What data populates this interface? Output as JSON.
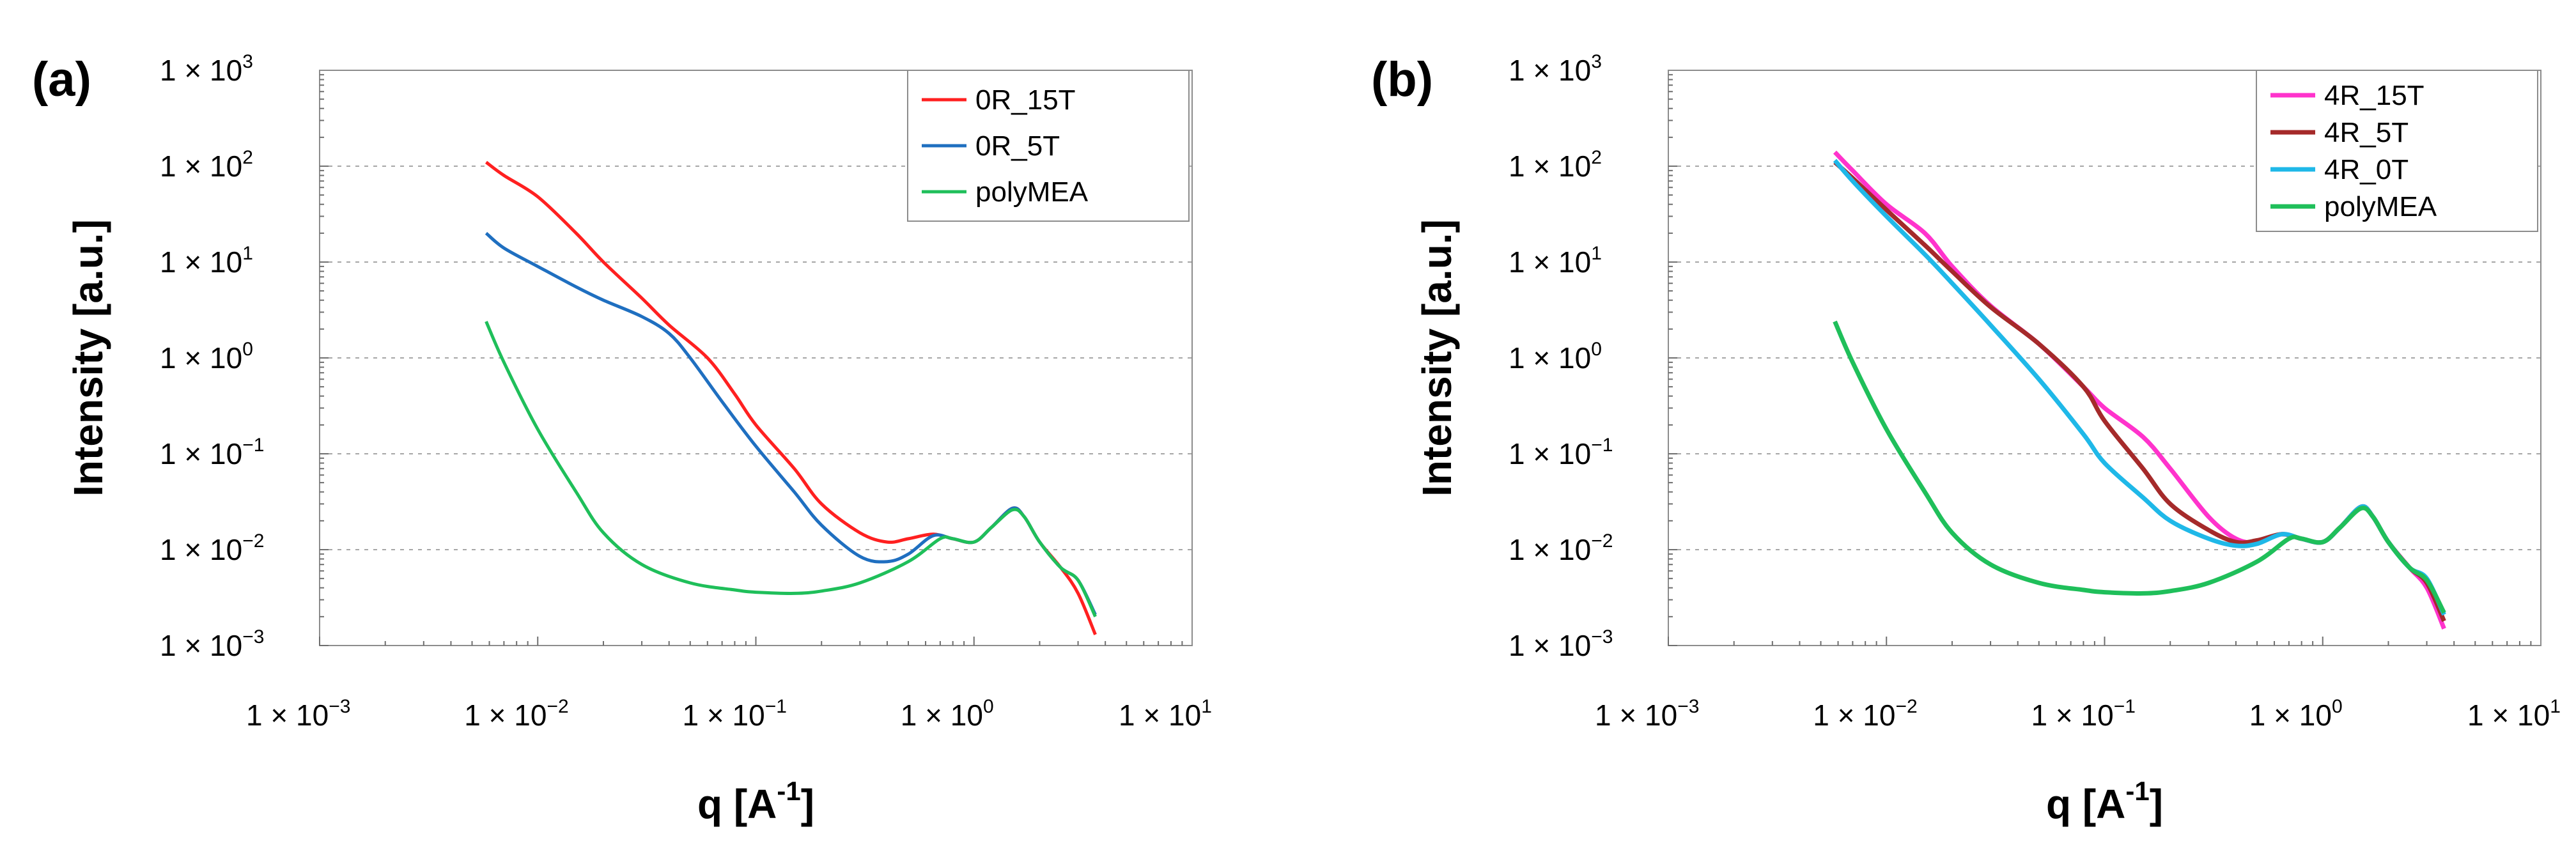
{
  "chart_data": [
    {
      "type": "line",
      "panel_label": "(a)",
      "xlabel": "q   [A",
      "xlabel_sup": "-1",
      "xlabel_end": "]",
      "ylabel": "Intensity   [a.u.]",
      "xscale": "log",
      "yscale": "log",
      "xlim": [
        0.001,
        10
      ],
      "ylim": [
        0.001,
        1000
      ],
      "x_ticks": [
        {
          "value": 0.001,
          "base": "1 × 10",
          "exp": "−3"
        },
        {
          "value": 0.01,
          "base": "1 × 10",
          "exp": "−2"
        },
        {
          "value": 0.1,
          "base": "1 × 10",
          "exp": "−1"
        },
        {
          "value": 1,
          "base": "1 × 10",
          "exp": "0"
        },
        {
          "value": 10,
          "base": "1 × 10",
          "exp": "1"
        }
      ],
      "y_ticks": [
        {
          "value": 0.001,
          "base": "1 × 10",
          "exp": "−3"
        },
        {
          "value": 0.01,
          "base": "1 × 10",
          "exp": "−2"
        },
        {
          "value": 0.1,
          "base": "1 × 10",
          "exp": "−1"
        },
        {
          "value": 1,
          "base": "1 × 10",
          "exp": "0"
        },
        {
          "value": 10,
          "base": "1 × 10",
          "exp": "1"
        },
        {
          "value": 100,
          "base": "1 × 10",
          "exp": "2"
        },
        {
          "value": 1000,
          "base": "1 × 10",
          "exp": "3"
        }
      ],
      "grid": true,
      "legend_position": "top-right",
      "series": [
        {
          "name": "0R_15T",
          "color": "#ff2020",
          "width": 5,
          "points": [
            [
              0.0058,
              110
            ],
            [
              0.007,
              80
            ],
            [
              0.01,
              48
            ],
            [
              0.015,
              20
            ],
            [
              0.02,
              10
            ],
            [
              0.03,
              4.2
            ],
            [
              0.04,
              2.2
            ],
            [
              0.06,
              1.0
            ],
            [
              0.08,
              0.42
            ],
            [
              0.1,
              0.2
            ],
            [
              0.15,
              0.07
            ],
            [
              0.2,
              0.03
            ],
            [
              0.3,
              0.015
            ],
            [
              0.4,
              0.012
            ],
            [
              0.5,
              0.013
            ],
            [
              0.65,
              0.0145
            ],
            [
              0.8,
              0.013
            ],
            [
              1.0,
              0.012
            ],
            [
              1.2,
              0.017
            ],
            [
              1.5,
              0.027
            ],
            [
              1.7,
              0.022
            ],
            [
              2.0,
              0.012
            ],
            [
              2.5,
              0.0065
            ],
            [
              3.0,
              0.0035
            ],
            [
              3.6,
              0.0013
            ]
          ]
        },
        {
          "name": "0R_5T",
          "color": "#1f6fc0",
          "width": 5,
          "points": [
            [
              0.0058,
              20
            ],
            [
              0.007,
              14
            ],
            [
              0.01,
              9
            ],
            [
              0.015,
              5.5
            ],
            [
              0.02,
              4.0
            ],
            [
              0.03,
              2.7
            ],
            [
              0.04,
              1.8
            ],
            [
              0.05,
              1.0
            ],
            [
              0.07,
              0.35
            ],
            [
              0.1,
              0.12
            ],
            [
              0.15,
              0.04
            ],
            [
              0.2,
              0.018
            ],
            [
              0.3,
              0.0085
            ],
            [
              0.4,
              0.0075
            ],
            [
              0.5,
              0.009
            ],
            [
              0.65,
              0.014
            ],
            [
              0.8,
              0.013
            ],
            [
              1.0,
              0.012
            ],
            [
              1.2,
              0.017
            ],
            [
              1.5,
              0.027
            ],
            [
              1.7,
              0.022
            ],
            [
              2.0,
              0.012
            ],
            [
              2.5,
              0.0065
            ],
            [
              3.0,
              0.0048
            ],
            [
              3.6,
              0.0021
            ]
          ]
        },
        {
          "name": "polyMEA",
          "color": "#1fbf5a",
          "width": 5,
          "points": [
            [
              0.0058,
              2.4
            ],
            [
              0.007,
              0.9
            ],
            [
              0.01,
              0.18
            ],
            [
              0.015,
              0.04
            ],
            [
              0.02,
              0.015
            ],
            [
              0.03,
              0.007
            ],
            [
              0.05,
              0.0045
            ],
            [
              0.08,
              0.0038
            ],
            [
              0.1,
              0.0036
            ],
            [
              0.15,
              0.0035
            ],
            [
              0.2,
              0.0037
            ],
            [
              0.3,
              0.0045
            ],
            [
              0.5,
              0.0075
            ],
            [
              0.7,
              0.013
            ],
            [
              0.8,
              0.013
            ],
            [
              1.0,
              0.012
            ],
            [
              1.2,
              0.017
            ],
            [
              1.5,
              0.026
            ],
            [
              1.7,
              0.022
            ],
            [
              2.0,
              0.012
            ],
            [
              2.5,
              0.0065
            ],
            [
              3.0,
              0.0048
            ],
            [
              3.6,
              0.002
            ]
          ]
        }
      ]
    },
    {
      "type": "line",
      "panel_label": "(b)",
      "xlabel": "q   [A",
      "xlabel_sup": "-1",
      "xlabel_end": "]",
      "ylabel": "Intensity   [a.u.]",
      "xscale": "log",
      "yscale": "log",
      "xlim": [
        0.001,
        10
      ],
      "ylim": [
        0.001,
        1000
      ],
      "x_ticks": [
        {
          "value": 0.001,
          "base": "1 × 10",
          "exp": "−3"
        },
        {
          "value": 0.01,
          "base": "1 × 10",
          "exp": "−2"
        },
        {
          "value": 0.1,
          "base": "1 × 10",
          "exp": "−1"
        },
        {
          "value": 1,
          "base": "1 × 10",
          "exp": "0"
        },
        {
          "value": 10,
          "base": "1 × 10",
          "exp": "1"
        }
      ],
      "y_ticks": [
        {
          "value": 0.001,
          "base": "1 × 10",
          "exp": "−3"
        },
        {
          "value": 0.01,
          "base": "1 × 10",
          "exp": "−2"
        },
        {
          "value": 0.1,
          "base": "1 × 10",
          "exp": "−1"
        },
        {
          "value": 1,
          "base": "1 × 10",
          "exp": "0"
        },
        {
          "value": 10,
          "base": "1 × 10",
          "exp": "1"
        },
        {
          "value": 100,
          "base": "1 × 10",
          "exp": "2"
        },
        {
          "value": 1000,
          "base": "1 × 10",
          "exp": "3"
        }
      ],
      "grid": true,
      "legend_position": "top-right",
      "series": [
        {
          "name": "4R_15T",
          "color": "#ff33cc",
          "width": 7,
          "points": [
            [
              0.0058,
              140
            ],
            [
              0.007,
              90
            ],
            [
              0.01,
              40
            ],
            [
              0.015,
              20
            ],
            [
              0.02,
              9
            ],
            [
              0.03,
              3.5
            ],
            [
              0.05,
              1.4
            ],
            [
              0.08,
              0.5
            ],
            [
              0.1,
              0.3
            ],
            [
              0.15,
              0.15
            ],
            [
              0.2,
              0.07
            ],
            [
              0.3,
              0.022
            ],
            [
              0.4,
              0.013
            ],
            [
              0.5,
              0.012
            ],
            [
              0.65,
              0.0145
            ],
            [
              0.8,
              0.013
            ],
            [
              1.0,
              0.012
            ],
            [
              1.2,
              0.017
            ],
            [
              1.5,
              0.028
            ],
            [
              1.7,
              0.022
            ],
            [
              2.0,
              0.012
            ],
            [
              2.5,
              0.0065
            ],
            [
              3.0,
              0.004
            ],
            [
              3.6,
              0.0015
            ]
          ]
        },
        {
          "name": "4R_5T",
          "color": "#a52a2a",
          "width": 7,
          "points": [
            [
              0.0058,
              110
            ],
            [
              0.007,
              75
            ],
            [
              0.01,
              35
            ],
            [
              0.015,
              15
            ],
            [
              0.02,
              8
            ],
            [
              0.03,
              3.4
            ],
            [
              0.05,
              1.4
            ],
            [
              0.08,
              0.5
            ],
            [
              0.1,
              0.22
            ],
            [
              0.15,
              0.07
            ],
            [
              0.2,
              0.03
            ],
            [
              0.3,
              0.016
            ],
            [
              0.4,
              0.012
            ],
            [
              0.5,
              0.0125
            ],
            [
              0.65,
              0.0145
            ],
            [
              0.8,
              0.013
            ],
            [
              1.0,
              0.012
            ],
            [
              1.2,
              0.017
            ],
            [
              1.5,
              0.028
            ],
            [
              1.7,
              0.022
            ],
            [
              2.0,
              0.012
            ],
            [
              2.5,
              0.0065
            ],
            [
              3.0,
              0.0045
            ],
            [
              3.6,
              0.0018
            ]
          ]
        },
        {
          "name": "4R_0T",
          "color": "#1fb8e8",
          "width": 7,
          "points": [
            [
              0.0058,
              115
            ],
            [
              0.007,
              70
            ],
            [
              0.01,
              30
            ],
            [
              0.015,
              12
            ],
            [
              0.02,
              6
            ],
            [
              0.03,
              2.2
            ],
            [
              0.05,
              0.6
            ],
            [
              0.08,
              0.16
            ],
            [
              0.1,
              0.08
            ],
            [
              0.15,
              0.035
            ],
            [
              0.2,
              0.02
            ],
            [
              0.3,
              0.013
            ],
            [
              0.4,
              0.011
            ],
            [
              0.5,
              0.0115
            ],
            [
              0.65,
              0.0145
            ],
            [
              0.8,
              0.013
            ],
            [
              1.0,
              0.012
            ],
            [
              1.2,
              0.017
            ],
            [
              1.5,
              0.028
            ],
            [
              1.7,
              0.022
            ],
            [
              2.0,
              0.012
            ],
            [
              2.5,
              0.0065
            ],
            [
              3.0,
              0.005
            ],
            [
              3.6,
              0.0021
            ]
          ]
        },
        {
          "name": "polyMEA",
          "color": "#1fbf5a",
          "width": 7,
          "points": [
            [
              0.0058,
              2.4
            ],
            [
              0.007,
              0.9
            ],
            [
              0.01,
              0.18
            ],
            [
              0.015,
              0.04
            ],
            [
              0.02,
              0.015
            ],
            [
              0.03,
              0.007
            ],
            [
              0.05,
              0.0045
            ],
            [
              0.08,
              0.0038
            ],
            [
              0.1,
              0.0036
            ],
            [
              0.15,
              0.0035
            ],
            [
              0.2,
              0.0037
            ],
            [
              0.3,
              0.0045
            ],
            [
              0.5,
              0.0075
            ],
            [
              0.7,
              0.013
            ],
            [
              0.8,
              0.013
            ],
            [
              1.0,
              0.012
            ],
            [
              1.2,
              0.017
            ],
            [
              1.5,
              0.027
            ],
            [
              1.7,
              0.022
            ],
            [
              2.0,
              0.012
            ],
            [
              2.5,
              0.0065
            ],
            [
              3.0,
              0.0048
            ],
            [
              3.6,
              0.0022
            ]
          ]
        }
      ]
    }
  ]
}
